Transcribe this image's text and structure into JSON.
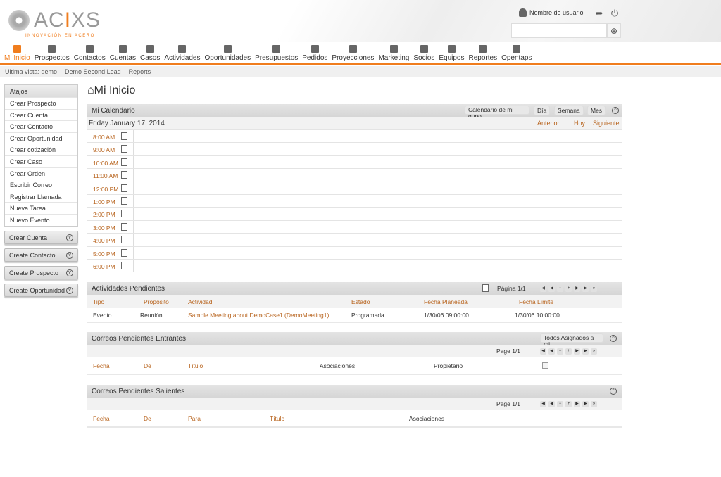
{
  "brand": {
    "name": "ACIXS",
    "tagline": "INNOVACIÓN EN ACERO",
    "accent": "#f07d1e"
  },
  "header": {
    "user": "Nombre de usuario",
    "search_placeholder": ""
  },
  "nav": [
    {
      "label": "Mi Inicio",
      "icon": "home-icon",
      "active": true
    },
    {
      "label": "Prospectos",
      "icon": "book-icon"
    },
    {
      "label": "Contactos",
      "icon": "person-icon"
    },
    {
      "label": "Cuentas",
      "icon": "monitor-icon"
    },
    {
      "label": "Casos",
      "icon": "case-icon"
    },
    {
      "label": "Actividades",
      "icon": "list-icon"
    },
    {
      "label": "Oportunidades",
      "icon": "briefcase-icon"
    },
    {
      "label": "Presupuestos",
      "icon": "stack-icon"
    },
    {
      "label": "Pedidos",
      "icon": "cart-icon"
    },
    {
      "label": "Proyecciones",
      "icon": "chart-icon"
    },
    {
      "label": "Marketing",
      "icon": "bulb-icon"
    },
    {
      "label": "Socios",
      "icon": "network-icon"
    },
    {
      "label": "Equipos",
      "icon": "building-icon"
    },
    {
      "label": "Reportes",
      "icon": "report-icon"
    },
    {
      "label": "Opentaps",
      "icon": "grid-icon"
    }
  ],
  "breadcrumb": {
    "label": "Ultima vista:",
    "items": [
      "demo",
      "Demo Second Lead",
      "Reports"
    ]
  },
  "sidebar": {
    "title": "Atajos",
    "items": [
      "Crear Prospecto",
      "Crear Cuenta",
      "Crear Contacto",
      "Crear Oportunidad",
      "Crear cotización",
      "Crear Caso",
      "Crear Orden",
      "Escribir Correo",
      "Registrar Llamada",
      "Nueva Tarea",
      "Nuevo Evento"
    ],
    "buttons": [
      "Crear Cuenta",
      "Create Contacto",
      "Create Prospecto",
      "Create Oportunidad"
    ]
  },
  "page_title": "Mi Inicio",
  "calendar": {
    "title": "Mi Calendario",
    "select": "Calendario de mi gupo",
    "views": [
      "Día",
      "Semana",
      "Mes"
    ],
    "date": "Friday January 17, 2014",
    "nav": [
      "Anterior",
      "Hoy",
      "Siguiente"
    ],
    "hours": [
      "8:00 AM",
      "9:00 AM",
      "10:00 AM",
      "11:00 AM",
      "12:00 PM",
      "1:00 PM",
      "2:00 PM",
      "3:00 PM",
      "4:00 PM",
      "5:00 PM",
      "6:00 PM"
    ]
  },
  "activities": {
    "title": "Actividades Pendientes",
    "page": "Página 1/1",
    "columns": [
      "Tipo",
      "Propósito",
      "Actividad",
      "Estado",
      "Fecha Planeada",
      "Fecha Límite"
    ],
    "rows": [
      [
        "Evento",
        "Reunión",
        "Sample Meeting about DemoCase1 (DemoMeeting1)",
        "Programada",
        "1/30/06 09:00:00",
        "1/30/06 10:00:00"
      ]
    ]
  },
  "incoming": {
    "title": "Correos Pendientes Entrantes",
    "select": "Todos Asignados a mi",
    "page": "Page 1/1",
    "columns": [
      "Fecha",
      "De",
      "Título",
      "Asociaciones",
      "Propietario"
    ]
  },
  "outgoing": {
    "title": "Correos Pendientes Salientes",
    "page": "Page 1/1",
    "columns": [
      "Fecha",
      "De",
      "Para",
      "Título",
      "Asociaciones"
    ]
  }
}
